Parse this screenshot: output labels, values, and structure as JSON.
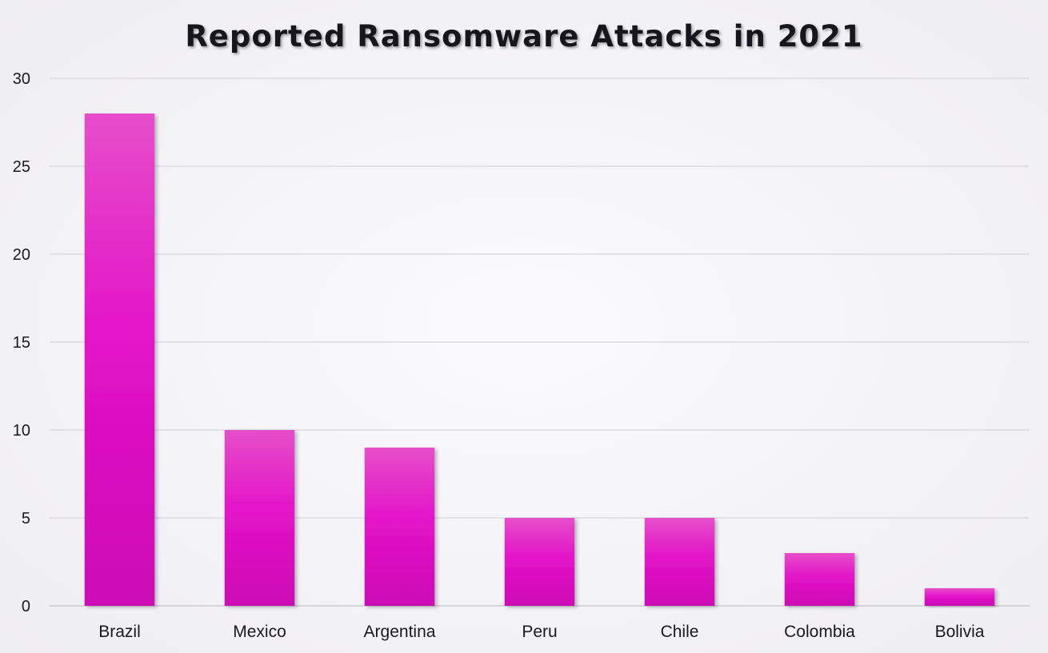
{
  "chart_data": {
    "type": "bar",
    "title": "Reported Ransomware Attacks in 2021",
    "xlabel": "",
    "ylabel": "",
    "categories": [
      "Brazil",
      "Mexico",
      "Argentina",
      "Peru",
      "Chile",
      "Colombia",
      "Bolivia"
    ],
    "values": [
      28,
      10,
      9,
      5,
      5,
      3,
      1
    ],
    "ylim": [
      0,
      30
    ],
    "yticks": [
      "0",
      "5",
      "10",
      "15",
      "20",
      "25",
      "30"
    ],
    "grid": true,
    "legend": "none",
    "colors": {
      "bar_top": "#e64ec9",
      "bar_mid": "#e314c9",
      "bar_bottom": "#cc08b4",
      "grid": "#d6d6da",
      "text": "#1a1a1a"
    }
  }
}
